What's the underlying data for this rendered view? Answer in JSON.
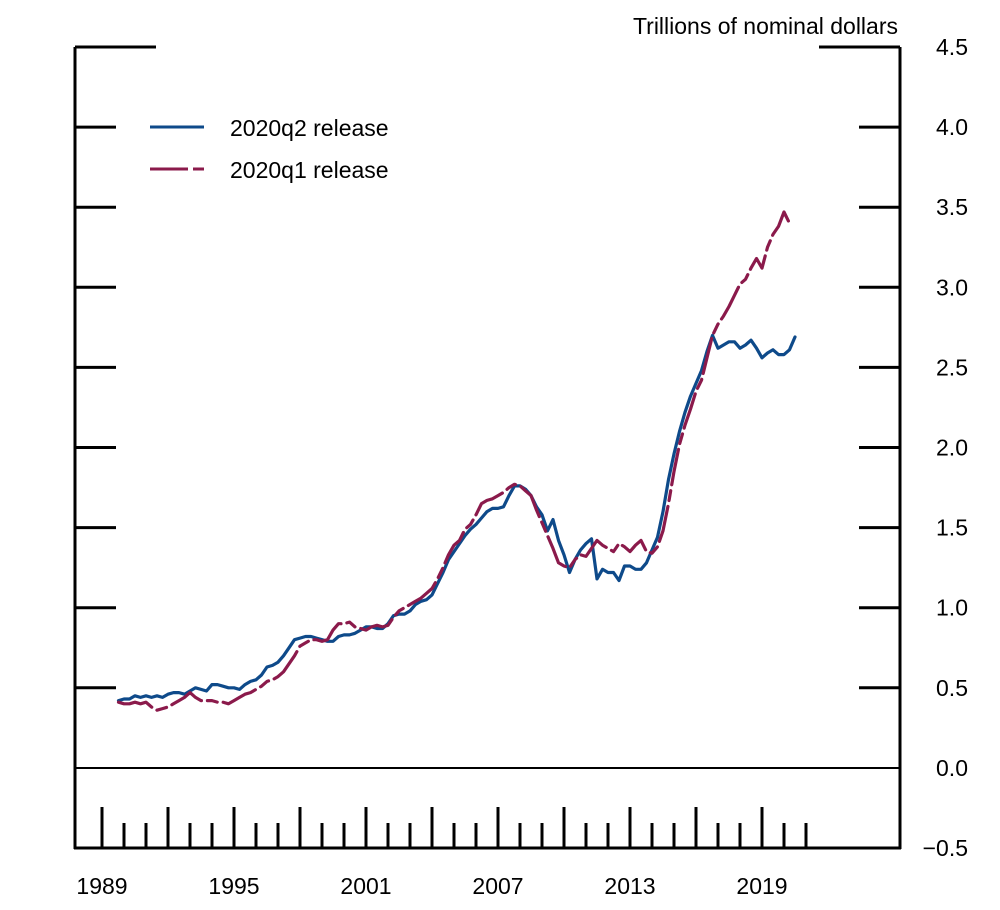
{
  "chart_data": {
    "type": "line",
    "title": "",
    "unit_label": "Trillions of nominal dollars",
    "xlabel": "",
    "ylabel": "Trillions of nominal dollars",
    "ylim": [
      -0.5,
      4.5
    ],
    "xlim": [
      1988,
      2024.75
    ],
    "y_ticks": [
      -0.5,
      0.0,
      0.5,
      1.0,
      1.5,
      2.0,
      2.5,
      3.0,
      3.5,
      4.0,
      4.5
    ],
    "y_tick_labels": [
      "−0.5",
      "0.0",
      "0.5",
      "1.0",
      "1.5",
      "2.0",
      "2.5",
      "3.0",
      "3.5",
      "4.0",
      "4.5"
    ],
    "x_tick_labels": [
      "1989",
      "1995",
      "2001",
      "2007",
      "2013",
      "2019"
    ],
    "x_major_ticks": [
      1989,
      1992,
      1995,
      1998,
      2001,
      2004,
      2007,
      2010,
      2013,
      2016,
      2019
    ],
    "x_minor_ticks": [
      1990,
      1991,
      1993,
      1994,
      1996,
      1997,
      1999,
      2000,
      2002,
      2003,
      2005,
      2006,
      2008,
      2009,
      2011,
      2012,
      2014,
      2015,
      2017,
      2018,
      2020,
      2021
    ],
    "grid": false,
    "legend_position": "top-left",
    "series": [
      {
        "name": "2020q2 release",
        "color": "#0e4a8a",
        "style": "solid",
        "x": [
          1989.75,
          1990.0,
          1990.25,
          1990.5,
          1990.75,
          1991.0,
          1991.25,
          1991.5,
          1991.75,
          1992.0,
          1992.25,
          1992.5,
          1992.75,
          1993.0,
          1993.25,
          1993.5,
          1993.75,
          1994.0,
          1994.25,
          1994.5,
          1994.75,
          1995.0,
          1995.25,
          1995.5,
          1995.75,
          1996.0,
          1996.25,
          1996.5,
          1996.75,
          1997.0,
          1997.25,
          1997.5,
          1997.75,
          1998.0,
          1998.25,
          1998.5,
          1998.75,
          1999.0,
          1999.25,
          1999.5,
          1999.75,
          2000.0,
          2000.25,
          2000.5,
          2000.75,
          2001.0,
          2001.25,
          2001.5,
          2001.75,
          2002.0,
          2002.25,
          2002.5,
          2002.75,
          2003.0,
          2003.25,
          2003.5,
          2003.75,
          2004.0,
          2004.25,
          2004.5,
          2004.75,
          2005.0,
          2005.25,
          2005.5,
          2005.75,
          2006.0,
          2006.25,
          2006.5,
          2006.75,
          2007.0,
          2007.25,
          2007.5,
          2007.75,
          2008.0,
          2008.25,
          2008.5,
          2008.75,
          2009.0,
          2009.25,
          2009.5,
          2009.75,
          2010.0,
          2010.25,
          2010.5,
          2010.75,
          2011.0,
          2011.25,
          2011.5,
          2011.75,
          2012.0,
          2012.25,
          2012.5,
          2012.75,
          2013.0,
          2013.25,
          2013.5,
          2013.75,
          2014.0,
          2014.25,
          2014.5,
          2014.75,
          2015.0,
          2015.25,
          2015.5,
          2015.75,
          2016.0,
          2016.25,
          2016.5,
          2016.75,
          2017.0,
          2017.25,
          2017.5,
          2017.75,
          2018.0,
          2018.25,
          2018.5,
          2018.75,
          2019.0,
          2019.25,
          2019.5,
          2019.75,
          2020.0,
          2020.25,
          2020.5
        ],
        "values": [
          0.42,
          0.43,
          0.43,
          0.45,
          0.44,
          0.45,
          0.44,
          0.45,
          0.44,
          0.46,
          0.47,
          0.47,
          0.46,
          0.48,
          0.5,
          0.49,
          0.48,
          0.52,
          0.52,
          0.51,
          0.5,
          0.5,
          0.49,
          0.52,
          0.54,
          0.55,
          0.58,
          0.63,
          0.64,
          0.66,
          0.7,
          0.75,
          0.8,
          0.81,
          0.82,
          0.82,
          0.81,
          0.8,
          0.79,
          0.79,
          0.82,
          0.83,
          0.83,
          0.84,
          0.86,
          0.88,
          0.88,
          0.87,
          0.87,
          0.9,
          0.95,
          0.96,
          0.96,
          0.98,
          1.02,
          1.04,
          1.05,
          1.08,
          1.15,
          1.22,
          1.3,
          1.35,
          1.4,
          1.45,
          1.49,
          1.52,
          1.56,
          1.6,
          1.62,
          1.62,
          1.63,
          1.7,
          1.76,
          1.76,
          1.74,
          1.7,
          1.63,
          1.58,
          1.48,
          1.55,
          1.42,
          1.33,
          1.22,
          1.3,
          1.36,
          1.4,
          1.43,
          1.18,
          1.24,
          1.22,
          1.22,
          1.17,
          1.26,
          1.26,
          1.24,
          1.24,
          1.28,
          1.36,
          1.44,
          1.6,
          1.8,
          1.96,
          2.1,
          2.22,
          2.32,
          2.4,
          2.48,
          2.6,
          2.7,
          2.62,
          2.64,
          2.66,
          2.66,
          2.62,
          2.64,
          2.67,
          2.62,
          2.56,
          2.59,
          2.61,
          2.58,
          2.58,
          2.61,
          2.69
        ]
      },
      {
        "name": "2020q1 release",
        "color": "#8b1a4b",
        "style": "dashed",
        "x": [
          1989.75,
          1990.0,
          1990.25,
          1990.5,
          1990.75,
          1991.0,
          1991.25,
          1991.5,
          1991.75,
          1992.0,
          1992.25,
          1992.5,
          1992.75,
          1993.0,
          1993.25,
          1993.5,
          1993.75,
          1994.0,
          1994.25,
          1994.5,
          1994.75,
          1995.0,
          1995.25,
          1995.5,
          1995.75,
          1996.0,
          1996.25,
          1996.5,
          1996.75,
          1997.0,
          1997.25,
          1997.5,
          1997.75,
          1998.0,
          1998.25,
          1998.5,
          1998.75,
          1999.0,
          1999.25,
          1999.5,
          1999.75,
          2000.0,
          2000.25,
          2000.5,
          2000.75,
          2001.0,
          2001.25,
          2001.5,
          2001.75,
          2002.0,
          2002.25,
          2002.5,
          2002.75,
          2003.0,
          2003.25,
          2003.5,
          2003.75,
          2004.0,
          2004.25,
          2004.5,
          2004.75,
          2005.0,
          2005.25,
          2005.5,
          2005.75,
          2006.0,
          2006.25,
          2006.5,
          2006.75,
          2007.0,
          2007.25,
          2007.5,
          2007.75,
          2008.0,
          2008.25,
          2008.5,
          2008.75,
          2009.0,
          2009.25,
          2009.5,
          2009.75,
          2010.0,
          2010.25,
          2010.5,
          2010.75,
          2011.0,
          2011.25,
          2011.5,
          2011.75,
          2012.0,
          2012.25,
          2012.5,
          2012.75,
          2013.0,
          2013.25,
          2013.5,
          2013.75,
          2014.0,
          2014.25,
          2014.5,
          2014.75,
          2015.0,
          2015.25,
          2015.5,
          2015.75,
          2016.0,
          2016.25,
          2016.5,
          2016.75,
          2017.0,
          2017.25,
          2017.5,
          2017.75,
          2018.0,
          2018.25,
          2018.5,
          2018.75,
          2019.0,
          2019.25,
          2019.5,
          2019.75,
          2020.0,
          2020.25
        ],
        "values": [
          0.41,
          0.4,
          0.4,
          0.41,
          0.4,
          0.41,
          0.38,
          0.36,
          0.37,
          0.38,
          0.4,
          0.42,
          0.44,
          0.47,
          0.44,
          0.42,
          0.42,
          0.42,
          0.41,
          0.41,
          0.4,
          0.42,
          0.44,
          0.46,
          0.47,
          0.49,
          0.51,
          0.54,
          0.55,
          0.57,
          0.6,
          0.65,
          0.7,
          0.76,
          0.78,
          0.8,
          0.8,
          0.79,
          0.8,
          0.86,
          0.9,
          0.9,
          0.91,
          0.88,
          0.87,
          0.86,
          0.88,
          0.89,
          0.88,
          0.89,
          0.94,
          0.98,
          1.0,
          1.02,
          1.04,
          1.06,
          1.09,
          1.12,
          1.18,
          1.25,
          1.33,
          1.39,
          1.42,
          1.49,
          1.52,
          1.58,
          1.65,
          1.67,
          1.68,
          1.7,
          1.72,
          1.75,
          1.77,
          1.76,
          1.73,
          1.7,
          1.61,
          1.53,
          1.45,
          1.37,
          1.28,
          1.26,
          1.25,
          1.3,
          1.33,
          1.32,
          1.37,
          1.42,
          1.39,
          1.37,
          1.35,
          1.4,
          1.38,
          1.35,
          1.39,
          1.42,
          1.35,
          1.34,
          1.38,
          1.48,
          1.65,
          1.85,
          2.02,
          2.14,
          2.24,
          2.35,
          2.42,
          2.56,
          2.7,
          2.77,
          2.82,
          2.88,
          2.95,
          3.02,
          3.05,
          3.12,
          3.18,
          3.12,
          3.25,
          3.33,
          3.38,
          3.47,
          3.4
        ]
      }
    ]
  }
}
